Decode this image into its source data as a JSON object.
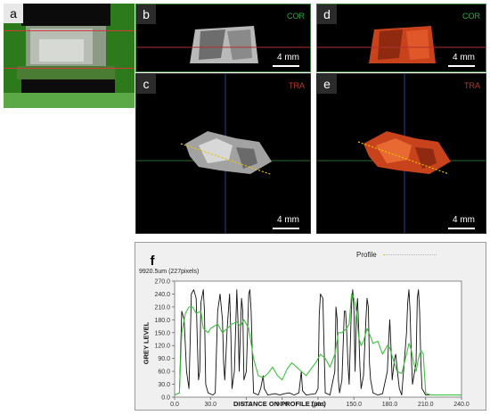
{
  "panel_a": {
    "label": "a"
  },
  "panel_b": {
    "label": "b",
    "view": "COR",
    "scale": "4 mm"
  },
  "panel_c": {
    "label": "c",
    "view": "TRA",
    "scale": "4 mm"
  },
  "panel_d": {
    "label": "d",
    "view": "COR",
    "scale": "4 mm"
  },
  "panel_e": {
    "label": "e",
    "view": "TRA",
    "scale": "4 mm"
  },
  "panel_f": {
    "label": "f",
    "legend_label": "Profile",
    "measurement": "9920.5um (227pixels)",
    "colors": {
      "black_trace": "#111111",
      "green_trace": "#3fc23f",
      "legend_line": "#e0c000"
    }
  },
  "chart_data": {
    "type": "line",
    "xlabel": "DISTANCE ON PROFILE (µm)",
    "ylabel": "GREY LEVEL",
    "x_ticks": [
      "0.0",
      "30.0",
      "60.0",
      "90.0",
      "120.0",
      "150.0",
      "180.0",
      "210.0",
      "240.0"
    ],
    "y_ticks": [
      "0.0",
      "30.0",
      "60.0",
      "90.0",
      "120.0",
      "150.0",
      "180.0",
      "210.0",
      "240.0",
      "270.0"
    ],
    "xlim": [
      0,
      240
    ],
    "ylim": [
      0,
      270
    ],
    "grid": false,
    "series": [
      {
        "values": [
          [
            0,
            5
          ],
          [
            4,
            10
          ],
          [
            6,
            200
          ],
          [
            8,
            180
          ],
          [
            10,
            60
          ],
          [
            12,
            20
          ],
          [
            14,
            240
          ],
          [
            16,
            250
          ],
          [
            18,
            230
          ],
          [
            19,
            130
          ],
          [
            20,
            40
          ],
          [
            21,
            60
          ],
          [
            22,
            220
          ],
          [
            24,
            250
          ],
          [
            25,
            200
          ],
          [
            26,
            30
          ],
          [
            28,
            10
          ],
          [
            32,
            5
          ],
          [
            34,
            10
          ],
          [
            36,
            200
          ],
          [
            38,
            240
          ],
          [
            40,
            180
          ],
          [
            41,
            80
          ],
          [
            42,
            40
          ],
          [
            44,
            160
          ],
          [
            46,
            240
          ],
          [
            47,
            150
          ],
          [
            48,
            20
          ],
          [
            50,
            60
          ],
          [
            52,
            250
          ],
          [
            53,
            180
          ],
          [
            54,
            60
          ],
          [
            55,
            150
          ],
          [
            56,
            230
          ],
          [
            57,
            200
          ],
          [
            58,
            40
          ],
          [
            60,
            60
          ],
          [
            62,
            240
          ],
          [
            63,
            250
          ],
          [
            64,
            200
          ],
          [
            65,
            100
          ],
          [
            66,
            10
          ],
          [
            70,
            5
          ],
          [
            72,
            20
          ],
          [
            74,
            50
          ],
          [
            75,
            20
          ],
          [
            78,
            5
          ],
          [
            84,
            8
          ],
          [
            88,
            5
          ],
          [
            92,
            8
          ],
          [
            96,
            10
          ],
          [
            100,
            5
          ],
          [
            104,
            10
          ],
          [
            106,
            60
          ],
          [
            107,
            15
          ],
          [
            110,
            5
          ],
          [
            118,
            8
          ],
          [
            120,
            20
          ],
          [
            121,
            190
          ],
          [
            122,
            240
          ],
          [
            124,
            230
          ],
          [
            125,
            120
          ],
          [
            126,
            10
          ],
          [
            130,
            5
          ],
          [
            134,
            60
          ],
          [
            135,
            210
          ],
          [
            136,
            180
          ],
          [
            137,
            40
          ],
          [
            138,
            10
          ],
          [
            140,
            40
          ],
          [
            142,
            200
          ],
          [
            143,
            200
          ],
          [
            144,
            150
          ],
          [
            145,
            80
          ],
          [
            146,
            30
          ],
          [
            148,
            220
          ],
          [
            149,
            250
          ],
          [
            150,
            200
          ],
          [
            151,
            60
          ],
          [
            152,
            190
          ],
          [
            153,
            230
          ],
          [
            154,
            160
          ],
          [
            155,
            70
          ],
          [
            156,
            20
          ],
          [
            158,
            50
          ],
          [
            160,
            180
          ],
          [
            161,
            230
          ],
          [
            162,
            210
          ],
          [
            163,
            80
          ],
          [
            164,
            40
          ],
          [
            166,
            10
          ],
          [
            170,
            5
          ],
          [
            174,
            8
          ],
          [
            178,
            60
          ],
          [
            179,
            130
          ],
          [
            180,
            180
          ],
          [
            181,
            120
          ],
          [
            182,
            40
          ],
          [
            184,
            90
          ],
          [
            185,
            100
          ],
          [
            186,
            70
          ],
          [
            188,
            20
          ],
          [
            190,
            5
          ],
          [
            194,
            150
          ],
          [
            195,
            220
          ],
          [
            196,
            250
          ],
          [
            197,
            200
          ],
          [
            198,
            100
          ],
          [
            199,
            30
          ],
          [
            202,
            80
          ],
          [
            203,
            230
          ],
          [
            204,
            250
          ],
          [
            205,
            200
          ],
          [
            206,
            80
          ],
          [
            207,
            20
          ],
          [
            210,
            5
          ],
          [
            240,
            5
          ]
        ]
      },
      {
        "values": [
          [
            0,
            5
          ],
          [
            4,
            10
          ],
          [
            6,
            150
          ],
          [
            9,
            195
          ],
          [
            12,
            210
          ],
          [
            15,
            210
          ],
          [
            18,
            195
          ],
          [
            22,
            200
          ],
          [
            24,
            160
          ],
          [
            28,
            150
          ],
          [
            30,
            160
          ],
          [
            36,
            170
          ],
          [
            40,
            150
          ],
          [
            44,
            160
          ],
          [
            48,
            170
          ],
          [
            52,
            175
          ],
          [
            55,
            165
          ],
          [
            58,
            180
          ],
          [
            62,
            160
          ],
          [
            66,
            90
          ],
          [
            70,
            50
          ],
          [
            74,
            45
          ],
          [
            78,
            55
          ],
          [
            82,
            70
          ],
          [
            86,
            50
          ],
          [
            90,
            40
          ],
          [
            94,
            65
          ],
          [
            98,
            80
          ],
          [
            102,
            70
          ],
          [
            106,
            60
          ],
          [
            110,
            50
          ],
          [
            114,
            65
          ],
          [
            118,
            80
          ],
          [
            122,
            100
          ],
          [
            126,
            90
          ],
          [
            130,
            70
          ],
          [
            134,
            100
          ],
          [
            137,
            150
          ],
          [
            140,
            150
          ],
          [
            144,
            160
          ],
          [
            146,
            170
          ],
          [
            148,
            240
          ],
          [
            150,
            230
          ],
          [
            152,
            200
          ],
          [
            154,
            140
          ],
          [
            156,
            120
          ],
          [
            158,
            130
          ],
          [
            161,
            160
          ],
          [
            164,
            140
          ],
          [
            166,
            125
          ],
          [
            170,
            130
          ],
          [
            174,
            100
          ],
          [
            178,
            120
          ],
          [
            180,
            115
          ],
          [
            182,
            95
          ],
          [
            186,
            60
          ],
          [
            190,
            55
          ],
          [
            194,
            100
          ],
          [
            196,
            125
          ],
          [
            198,
            110
          ],
          [
            200,
            80
          ],
          [
            202,
            60
          ],
          [
            204,
            90
          ],
          [
            206,
            110
          ],
          [
            208,
            100
          ],
          [
            210,
            10
          ],
          [
            214,
            5
          ],
          [
            240,
            5
          ]
        ]
      }
    ]
  }
}
